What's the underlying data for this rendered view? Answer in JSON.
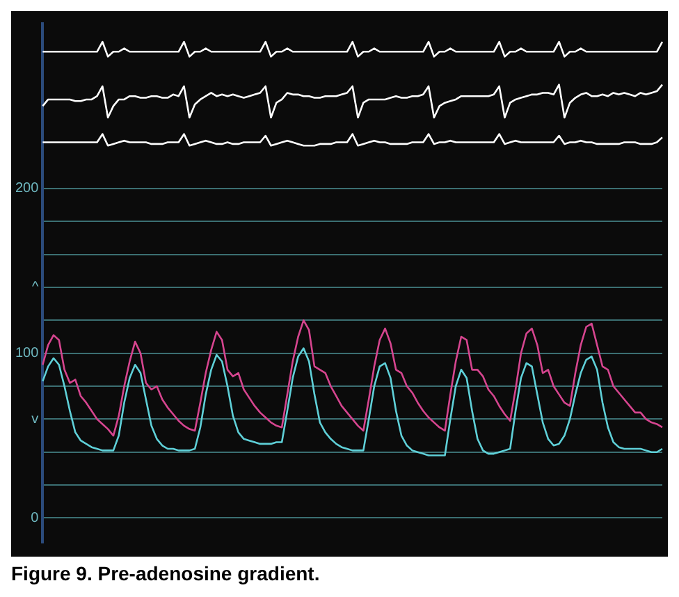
{
  "chart_data": {
    "type": "line",
    "annotations": [
      "Figure 9. Pre-adenosine gradient."
    ],
    "categories": [
      null,
      null,
      null,
      null,
      null,
      null,
      null,
      null,
      null,
      null,
      null,
      null,
      null,
      null,
      null,
      null,
      null,
      null,
      null,
      null,
      null,
      null,
      null,
      null,
      null,
      null,
      null,
      null,
      null,
      null,
      null,
      null,
      null,
      null,
      null,
      null,
      null,
      null,
      null,
      null,
      null,
      null,
      null,
      null,
      null,
      null,
      null,
      null,
      null,
      null,
      null,
      null,
      null,
      null,
      null,
      null,
      null,
      null,
      null,
      null,
      null,
      null,
      null,
      null,
      null,
      null,
      null,
      null,
      null,
      null,
      null,
      null,
      null,
      null,
      null,
      null,
      null,
      null,
      null,
      null,
      null,
      null,
      null,
      null,
      null,
      null,
      null,
      null,
      null,
      null,
      null,
      null,
      null,
      null,
      null,
      null,
      null,
      null,
      null,
      null,
      null,
      null,
      null,
      null,
      null,
      null,
      null,
      null,
      null,
      null,
      null,
      null,
      null,
      null,
      null
    ],
    "ylim": [
      -15,
      300
    ],
    "yticks": [
      0,
      {
        "value": 20,
        "label": null
      },
      {
        "value": 40,
        "label": null
      },
      {
        "value": 60,
        "label": "v"
      },
      {
        "value": 80,
        "label": null
      },
      100,
      {
        "value": 120,
        "label": null
      },
      {
        "value": 140,
        "label": "^"
      },
      {
        "value": 160,
        "label": null
      },
      {
        "value": 180,
        "label": null
      },
      200
    ],
    "grid": "y",
    "legend": false,
    "marker": "none",
    "line_style": "solid",
    "tick_labels": "y",
    "series": [
      {
        "color": "#ffffff",
        "values": [
          283,
          283,
          283,
          283,
          283,
          283,
          283,
          283,
          283,
          283,
          283,
          289,
          280,
          283,
          283,
          285,
          283,
          283,
          283,
          283,
          283,
          283,
          283,
          283,
          283,
          283,
          289,
          280,
          283,
          283,
          285,
          283,
          283,
          283,
          283,
          283,
          283,
          283,
          283,
          283,
          283,
          289,
          280,
          283,
          283,
          285,
          283,
          283,
          283,
          283,
          283,
          283,
          283,
          283,
          283,
          283,
          283,
          289,
          280,
          283,
          283,
          285,
          283,
          283,
          283,
          283,
          283,
          283,
          283,
          283,
          283,
          289,
          280,
          283,
          283,
          285,
          283,
          283,
          283,
          283,
          283,
          283,
          283,
          283,
          289,
          280,
          283,
          283,
          285,
          283,
          283,
          283,
          283,
          283,
          283,
          289,
          280,
          283,
          283,
          285,
          283,
          283,
          283,
          283,
          283,
          283,
          283,
          283,
          283,
          283,
          283,
          283,
          283,
          283,
          289
        ]
      },
      {
        "color": "#ffffff",
        "values": [
          250,
          254,
          254,
          254,
          254,
          254,
          253,
          253,
          254,
          254,
          256,
          262,
          243,
          250,
          254,
          254,
          256,
          256,
          255,
          255,
          256,
          256,
          255,
          255,
          257,
          256,
          262,
          243,
          251,
          254,
          256,
          258,
          256,
          257,
          256,
          257,
          256,
          255,
          256,
          257,
          258,
          262,
          243,
          252,
          254,
          258,
          257,
          257,
          256,
          256,
          255,
          255,
          256,
          256,
          256,
          257,
          258,
          262,
          243,
          252,
          254,
          254,
          254,
          254,
          255,
          256,
          255,
          255,
          256,
          256,
          257,
          262,
          243,
          250,
          252,
          253,
          254,
          256,
          256,
          256,
          256,
          256,
          256,
          257,
          262,
          243,
          252,
          254,
          255,
          256,
          257,
          257,
          258,
          258,
          257,
          263,
          243,
          252,
          255,
          257,
          258,
          256,
          256,
          257,
          256,
          258,
          257,
          258,
          257,
          256,
          258,
          257,
          258,
          259,
          263
        ]
      },
      {
        "color": "#ffffff",
        "values": [
          228,
          228,
          228,
          228,
          228,
          228,
          228,
          228,
          228,
          228,
          228,
          233,
          226,
          227,
          228,
          229,
          228,
          228,
          228,
          228,
          227,
          227,
          227,
          228,
          228,
          228,
          233,
          226,
          227,
          228,
          229,
          228,
          227,
          227,
          228,
          227,
          227,
          228,
          228,
          228,
          228,
          232,
          226,
          227,
          228,
          229,
          228,
          227,
          226,
          226,
          226,
          227,
          227,
          227,
          228,
          228,
          228,
          233,
          226,
          227,
          228,
          229,
          228,
          228,
          227,
          227,
          227,
          227,
          228,
          228,
          228,
          233,
          227,
          228,
          228,
          229,
          228,
          228,
          228,
          228,
          228,
          228,
          228,
          228,
          233,
          227,
          228,
          229,
          228,
          228,
          228,
          228,
          228,
          228,
          228,
          232,
          227,
          228,
          228,
          229,
          228,
          228,
          227,
          227,
          227,
          227,
          227,
          228,
          228,
          228,
          227,
          227,
          227,
          228,
          231
        ]
      },
      {
        "color": "#d6458f",
        "values": [
          93,
          105,
          111,
          108,
          90,
          82,
          84,
          74,
          70,
          65,
          60,
          57,
          54,
          50,
          62,
          80,
          95,
          107,
          100,
          82,
          78,
          80,
          72,
          67,
          63,
          59,
          56,
          54,
          53,
          70,
          88,
          102,
          113,
          108,
          90,
          86,
          88,
          78,
          73,
          68,
          64,
          61,
          58,
          56,
          55,
          75,
          95,
          110,
          120,
          114,
          92,
          90,
          88,
          80,
          74,
          68,
          64,
          60,
          56,
          53,
          72,
          92,
          108,
          115,
          106,
          90,
          88,
          80,
          76,
          70,
          65,
          61,
          58,
          55,
          53,
          75,
          95,
          110,
          108,
          90,
          90,
          86,
          78,
          74,
          68,
          63,
          59,
          78,
          100,
          112,
          115,
          105,
          88,
          90,
          80,
          75,
          70,
          68,
          88,
          105,
          116,
          118,
          105,
          92,
          90,
          80,
          76,
          72,
          68,
          64,
          64,
          60,
          58,
          57,
          55
        ]
      },
      {
        "color": "#5fd0d8",
        "values": [
          83,
          92,
          97,
          93,
          80,
          65,
          52,
          47,
          45,
          43,
          42,
          41,
          41,
          41,
          50,
          70,
          85,
          93,
          88,
          72,
          56,
          48,
          44,
          42,
          42,
          41,
          41,
          41,
          42,
          55,
          75,
          90,
          99,
          95,
          80,
          62,
          52,
          48,
          47,
          46,
          45,
          45,
          45,
          46,
          46,
          65,
          85,
          98,
          103,
          95,
          75,
          58,
          52,
          48,
          45,
          43,
          42,
          41,
          41,
          41,
          60,
          80,
          92,
          94,
          85,
          65,
          50,
          44,
          41,
          40,
          39,
          38,
          38,
          38,
          38,
          60,
          80,
          90,
          85,
          65,
          48,
          41,
          39,
          39,
          40,
          41,
          42,
          65,
          85,
          94,
          92,
          75,
          58,
          48,
          44,
          45,
          50,
          60,
          75,
          88,
          96,
          98,
          90,
          70,
          55,
          46,
          43,
          42,
          42,
          42,
          42,
          41,
          40,
          40,
          42
        ]
      }
    ]
  }
}
